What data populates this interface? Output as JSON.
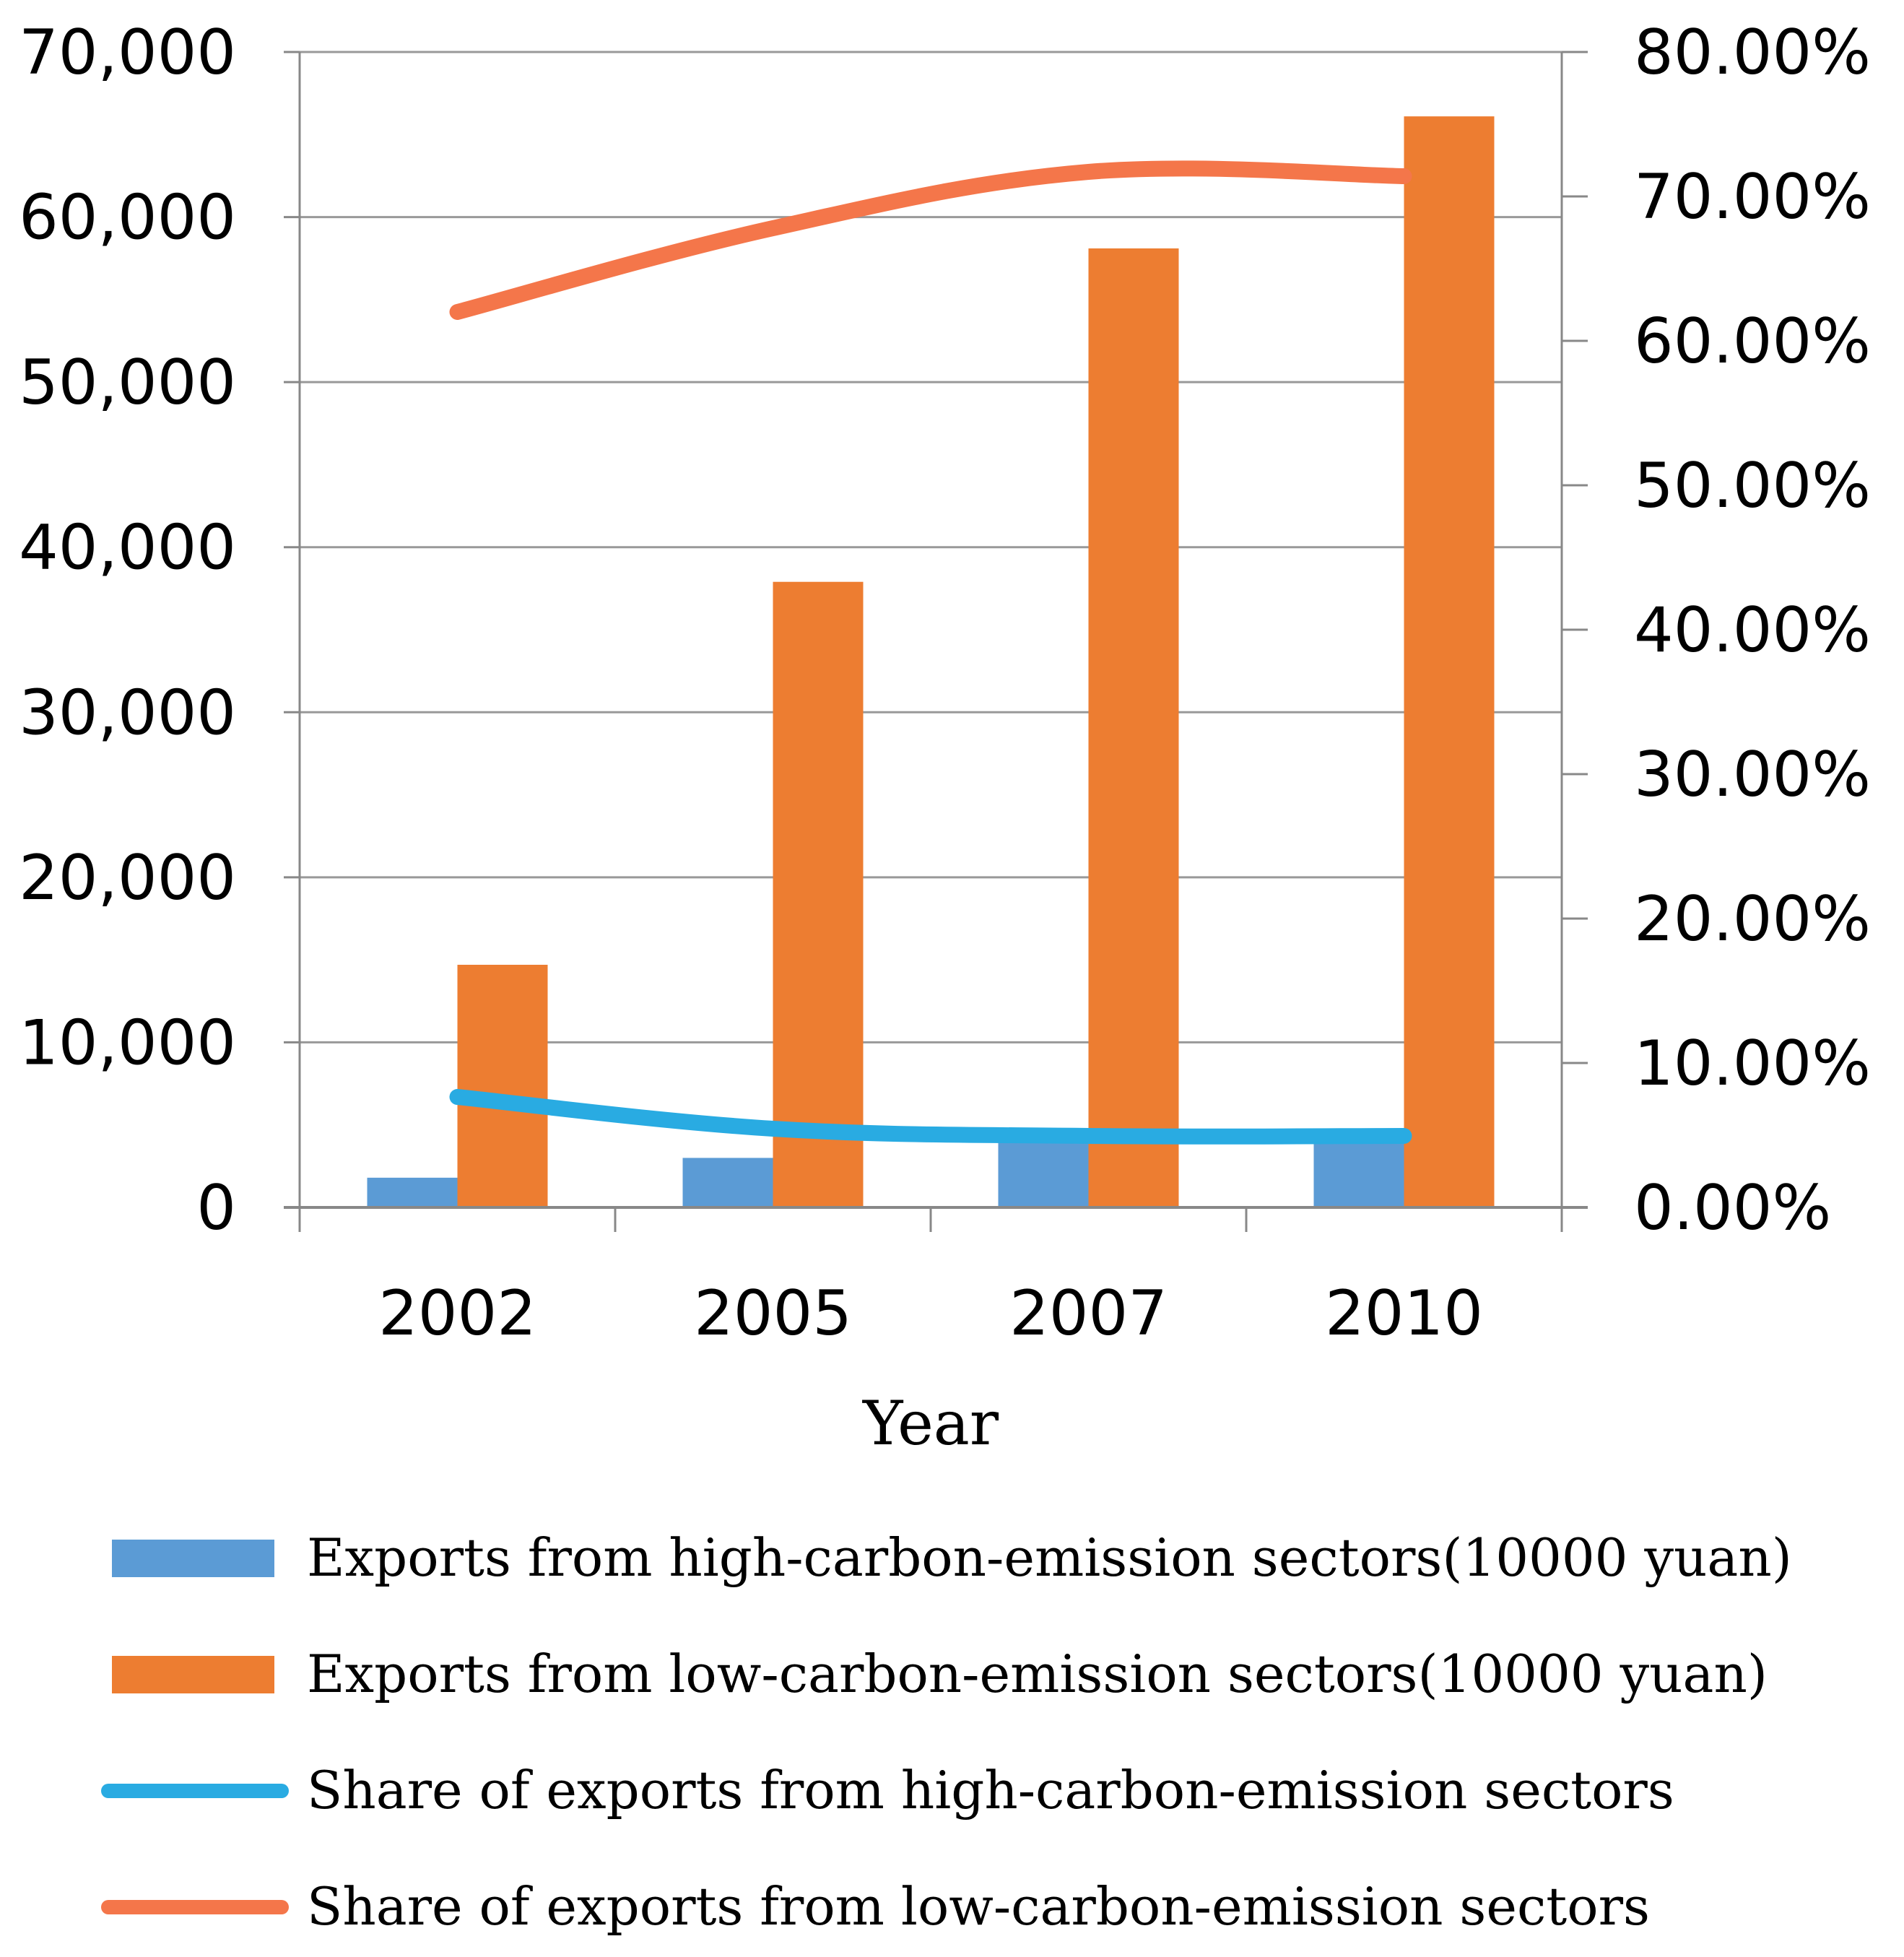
{
  "chart_data": {
    "type": "bar",
    "categories": [
      "2002",
      "2005",
      "2007",
      "2010"
    ],
    "xlabel": "Year",
    "ylabel": "",
    "ylabel_right": "",
    "ylim": [
      0,
      70000
    ],
    "ylim_right": [
      0,
      0.8
    ],
    "y_ticks": [
      "0",
      "10,000",
      "20,000",
      "30,000",
      "40,000",
      "50,000",
      "60,000",
      "70,000"
    ],
    "y_ticks_right": [
      "0.00%",
      "10.00%",
      "20.00%",
      "30.00%",
      "40.00%",
      "50.00%",
      "60.00%",
      "70.00%",
      "80.00%"
    ],
    "grid": true,
    "legend_position": "bottom",
    "series": [
      {
        "name": "Exports from high-carbon-emission sectors(10000 yuan)",
        "type": "bar",
        "axis": "left",
        "color": "#5b9bd5",
        "values": [
          1800,
          3000,
          4400,
          4500
        ]
      },
      {
        "name": "Exports from low-carbon-emission sectors(10000 yuan)",
        "type": "bar",
        "axis": "left",
        "color": "#ed7d31",
        "values": [
          14700,
          37900,
          58100,
          66100
        ]
      },
      {
        "name": "Share of exports from high-carbon-emission sectors",
        "type": "line",
        "axis": "right",
        "color": "#29abe2",
        "values": [
          0.0765,
          0.0545,
          0.0495,
          0.0495
        ]
      },
      {
        "name": "Share of exports from low-carbon-emission sectors",
        "type": "line",
        "axis": "right",
        "color": "#f4764a",
        "values": [
          0.62,
          0.678,
          0.717,
          0.714
        ]
      }
    ]
  }
}
